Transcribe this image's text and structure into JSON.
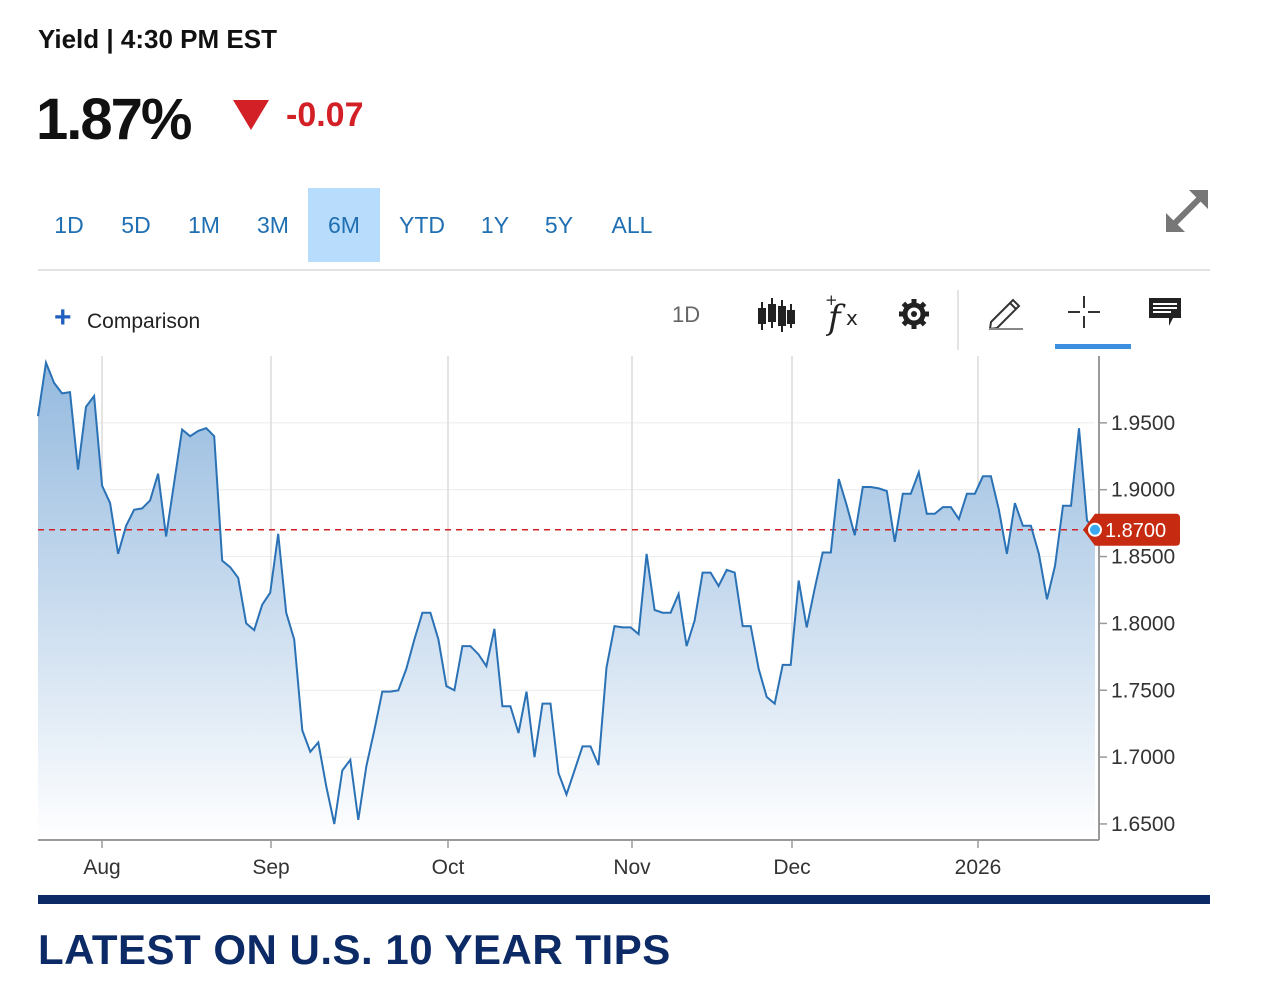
{
  "header": {
    "label": "Yield",
    "separator": "|",
    "time": "4:30 PM EST",
    "price": "1.87%",
    "change": "-0.07",
    "change_direction_icon": "triangle-down-icon",
    "change_color": "#d32027"
  },
  "range_tabs": [
    {
      "label": "1D",
      "active": false
    },
    {
      "label": "5D",
      "active": false
    },
    {
      "label": "1M",
      "active": false
    },
    {
      "label": "3M",
      "active": false
    },
    {
      "label": "6M",
      "active": true
    },
    {
      "label": "YTD",
      "active": false
    },
    {
      "label": "1Y",
      "active": false
    },
    {
      "label": "5Y",
      "active": false
    },
    {
      "label": "ALL",
      "active": false
    }
  ],
  "toolbar": {
    "comparison_label": "Comparison",
    "interval_label": "1D",
    "icons": [
      "candlestick-icon",
      "function-icon",
      "gear-icon",
      "pencil-icon",
      "crosshair-icon",
      "comment-icon"
    ],
    "expand_icon": "expand-icon"
  },
  "colors": {
    "accent": "#1f6fb2",
    "active_tab_bg": "#b8dcfb",
    "line": "#2a72b5",
    "reference_line": "#d32027",
    "price_tag": "#c62a10",
    "section_title": "#0b2a66"
  },
  "chart_data": {
    "type": "area",
    "x_tick_labels": [
      "Aug",
      "Sep",
      "Oct",
      "Nov",
      "Dec",
      "2026"
    ],
    "y_tick_labels": [
      "1.9500",
      "1.9000",
      "1.8500",
      "1.8000",
      "1.7500",
      "1.7000",
      "1.6500"
    ],
    "y_ticks": [
      1.95,
      1.9,
      1.85,
      1.8,
      1.75,
      1.7,
      1.65
    ],
    "ylim": [
      1.638,
      2.0
    ],
    "grid": true,
    "reference_value": 1.87,
    "reference_label": "1.8700",
    "series": [
      {
        "values": [
          1.955,
          1.995,
          1.98,
          1.972,
          1.973,
          1.915,
          1.962,
          1.97,
          1.903,
          1.89,
          1.852,
          1.873,
          1.885,
          1.886,
          1.892,
          1.912,
          1.865,
          1.905,
          1.945,
          1.94,
          1.944,
          1.946,
          1.94,
          1.847,
          1.842,
          1.834,
          1.8,
          1.795,
          1.814,
          1.823,
          1.867,
          1.808,
          1.788,
          1.72,
          1.704,
          1.711,
          1.678,
          1.65,
          1.69,
          1.698,
          1.653,
          1.693,
          1.72,
          1.749,
          1.749,
          1.75,
          1.766,
          1.788,
          1.808,
          1.808,
          1.788,
          1.753,
          1.75,
          1.783,
          1.783,
          1.777,
          1.768,
          1.796,
          1.738,
          1.738,
          1.718,
          1.749,
          1.7,
          1.74,
          1.74,
          1.688,
          1.672,
          1.69,
          1.708,
          1.708,
          1.694,
          1.767,
          1.798,
          1.797,
          1.797,
          1.792,
          1.852,
          1.81,
          1.808,
          1.808,
          1.822,
          1.783,
          1.802,
          1.838,
          1.838,
          1.828,
          1.84,
          1.838,
          1.798,
          1.798,
          1.766,
          1.745,
          1.74,
          1.769,
          1.769,
          1.832,
          1.797,
          1.826,
          1.853,
          1.853,
          1.908,
          1.888,
          1.866,
          1.902,
          1.902,
          1.901,
          1.899,
          1.861,
          1.897,
          1.897,
          1.913,
          1.882,
          1.882,
          1.887,
          1.887,
          1.878,
          1.897,
          1.897,
          1.91,
          1.91,
          1.885,
          1.852,
          1.89,
          1.873,
          1.873,
          1.852,
          1.818,
          1.843,
          1.888,
          1.888,
          1.946,
          1.877,
          1.87
        ]
      }
    ]
  },
  "section": {
    "title": "LATEST ON U.S. 10 YEAR TIPS"
  }
}
